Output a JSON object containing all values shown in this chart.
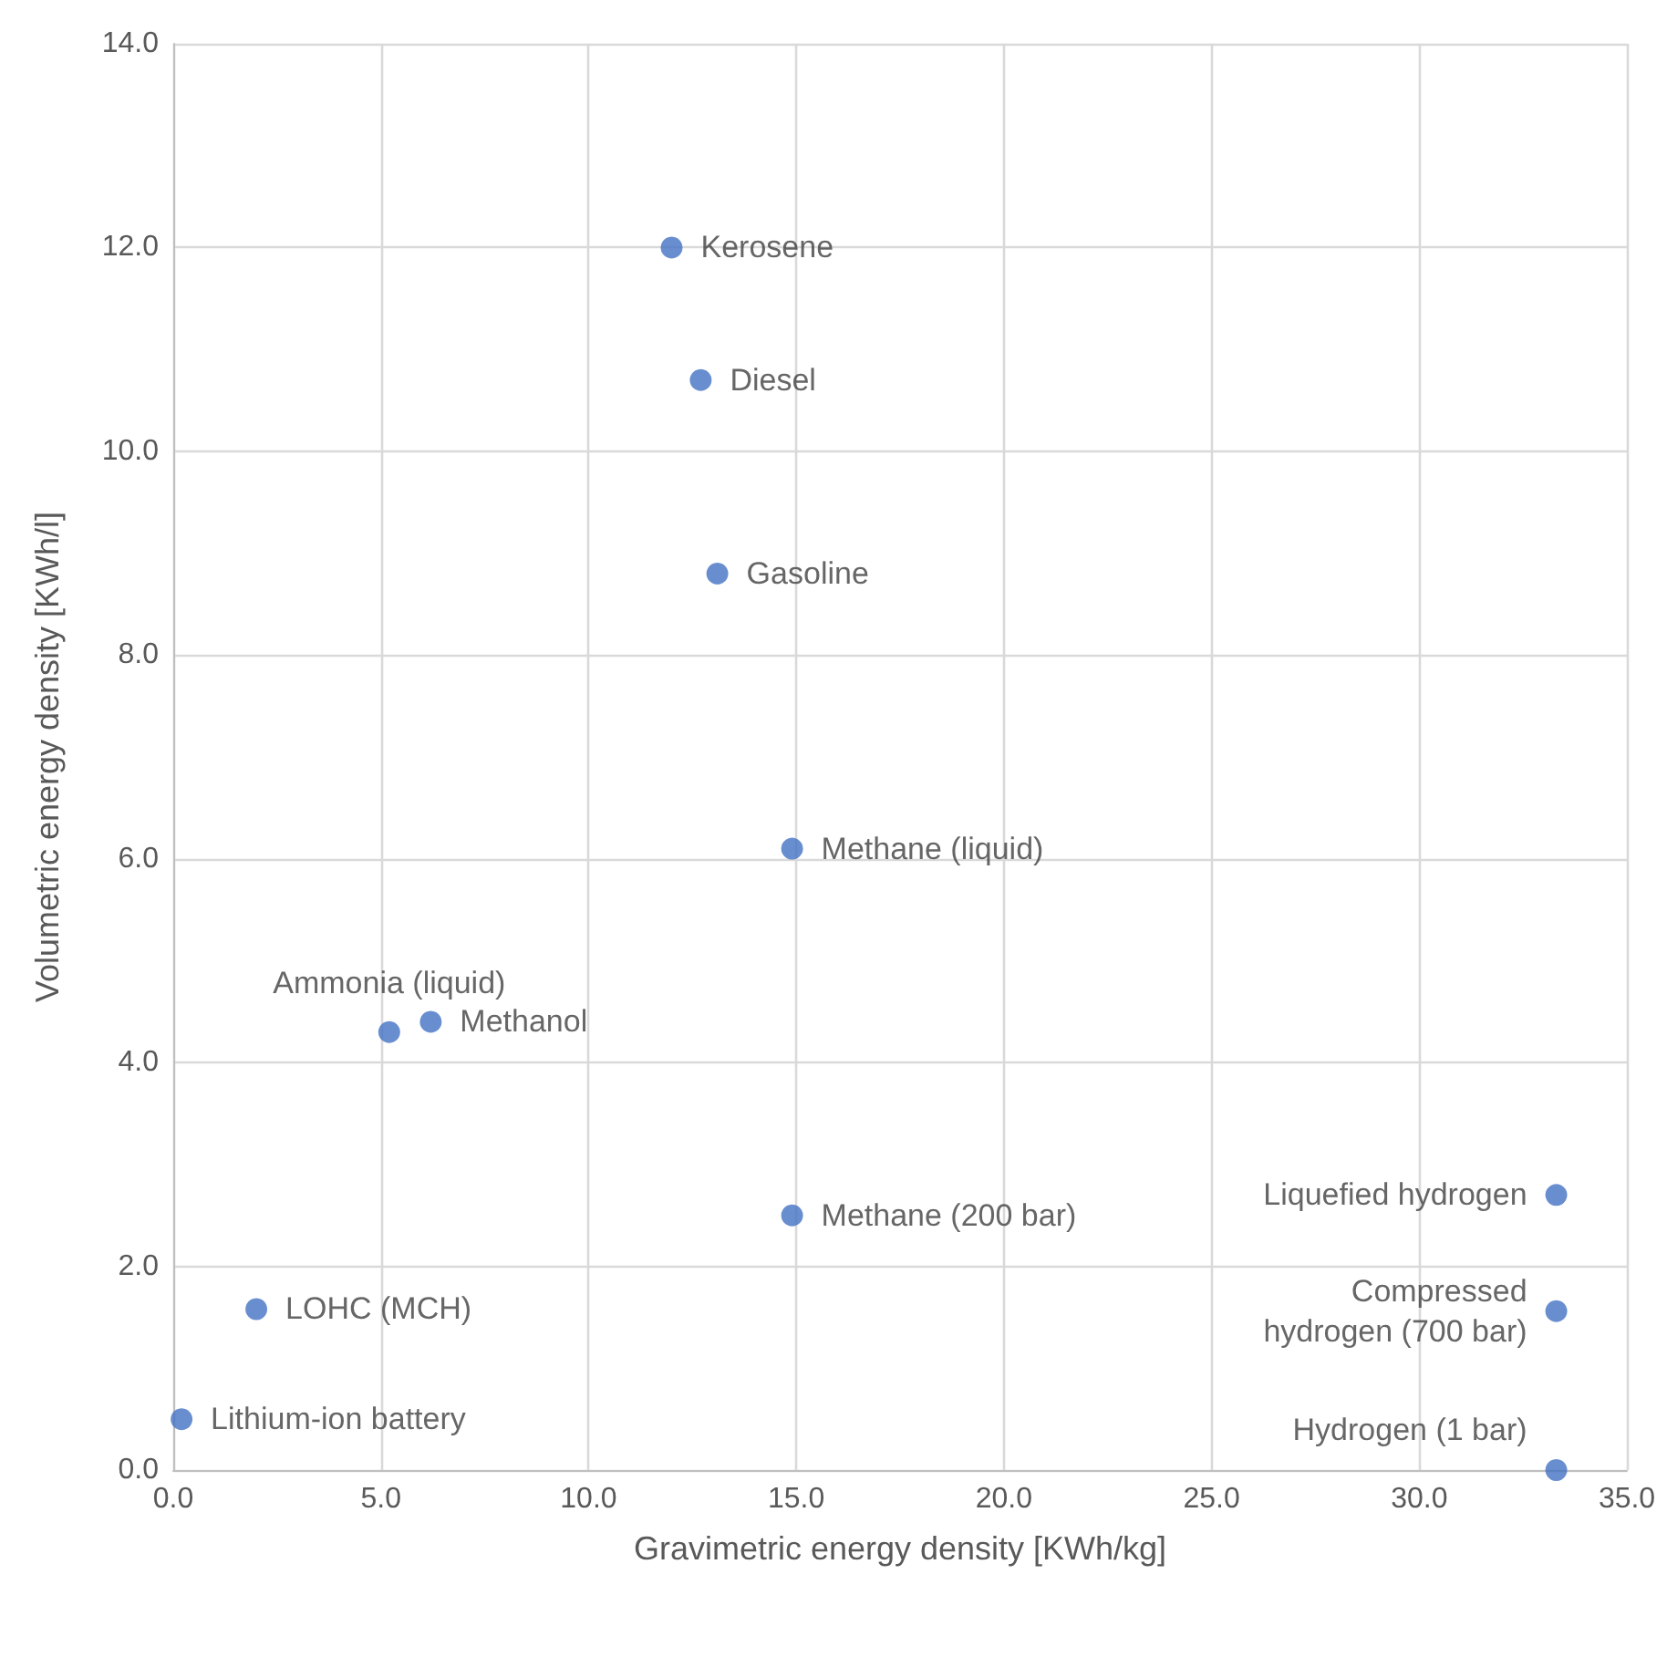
{
  "chart_data": {
    "type": "scatter",
    "xlabel": "Gravimetric energy density [KWh/kg]",
    "ylabel": "Volumetric energy density [KWh/l]",
    "x": [
      12.0,
      12.7,
      13.1,
      14.9,
      5.2,
      6.2,
      14.9,
      33.3,
      33.3,
      33.3,
      2.0,
      0.2
    ],
    "series": [
      {
        "color": "#4472c4",
        "values": [
          12.0,
          10.7,
          8.8,
          6.1,
          4.3,
          4.4,
          2.5,
          2.7,
          1.56,
          0.0,
          1.58,
          0.5
        ]
      }
    ],
    "annotations": [
      {
        "text": "Kerosene",
        "x": 12.0,
        "y": 12.0
      },
      {
        "text": "Diesel",
        "x": 12.7,
        "y": 10.7
      },
      {
        "text": "Gasoline",
        "x": 13.1,
        "y": 8.8
      },
      {
        "text": "Methane (liquid)",
        "x": 14.9,
        "y": 6.1
      },
      {
        "text": "Ammonia (liquid)",
        "x": 5.2,
        "y": 4.3
      },
      {
        "text": "Methanol",
        "x": 6.2,
        "y": 4.4
      },
      {
        "text": "Methane (200 bar)",
        "x": 14.9,
        "y": 2.5
      },
      {
        "text": "Liquefied hydrogen",
        "x": 33.3,
        "y": 2.7
      },
      {
        "text": "Compressed\nhydrogen (700 bar)",
        "x": 33.3,
        "y": 1.56
      },
      {
        "text": "Hydrogen (1 bar)",
        "x": 33.3,
        "y": 0.0
      },
      {
        "text": "LOHC (MCH)",
        "x": 2.0,
        "y": 1.58
      },
      {
        "text": "Lithium-ion battery",
        "x": 0.2,
        "y": 0.5
      }
    ],
    "xlim": [
      0,
      35
    ],
    "xticks": [
      {
        "value": 0,
        "label": "0.0"
      },
      {
        "value": 5,
        "label": "5.0"
      },
      {
        "value": 10,
        "label": "10.0"
      },
      {
        "value": 15,
        "label": "15.0"
      },
      {
        "value": 20,
        "label": "20.0"
      },
      {
        "value": 25,
        "label": "25.0"
      },
      {
        "value": 30,
        "label": "30.0"
      },
      {
        "value": 35,
        "label": "35.0"
      }
    ],
    "ylim": [
      0,
      14
    ],
    "yticks": [
      {
        "value": 0,
        "label": "0.0"
      },
      {
        "value": 2,
        "label": "2.0"
      },
      {
        "value": 4,
        "label": "4.0"
      },
      {
        "value": 6,
        "label": "6.0"
      },
      {
        "value": 8,
        "label": "8.0"
      },
      {
        "value": 10,
        "label": "10.0"
      },
      {
        "value": 12,
        "label": "12.0"
      },
      {
        "value": 14,
        "label": "14.0"
      }
    ],
    "grid": true,
    "marker": "circle"
  }
}
